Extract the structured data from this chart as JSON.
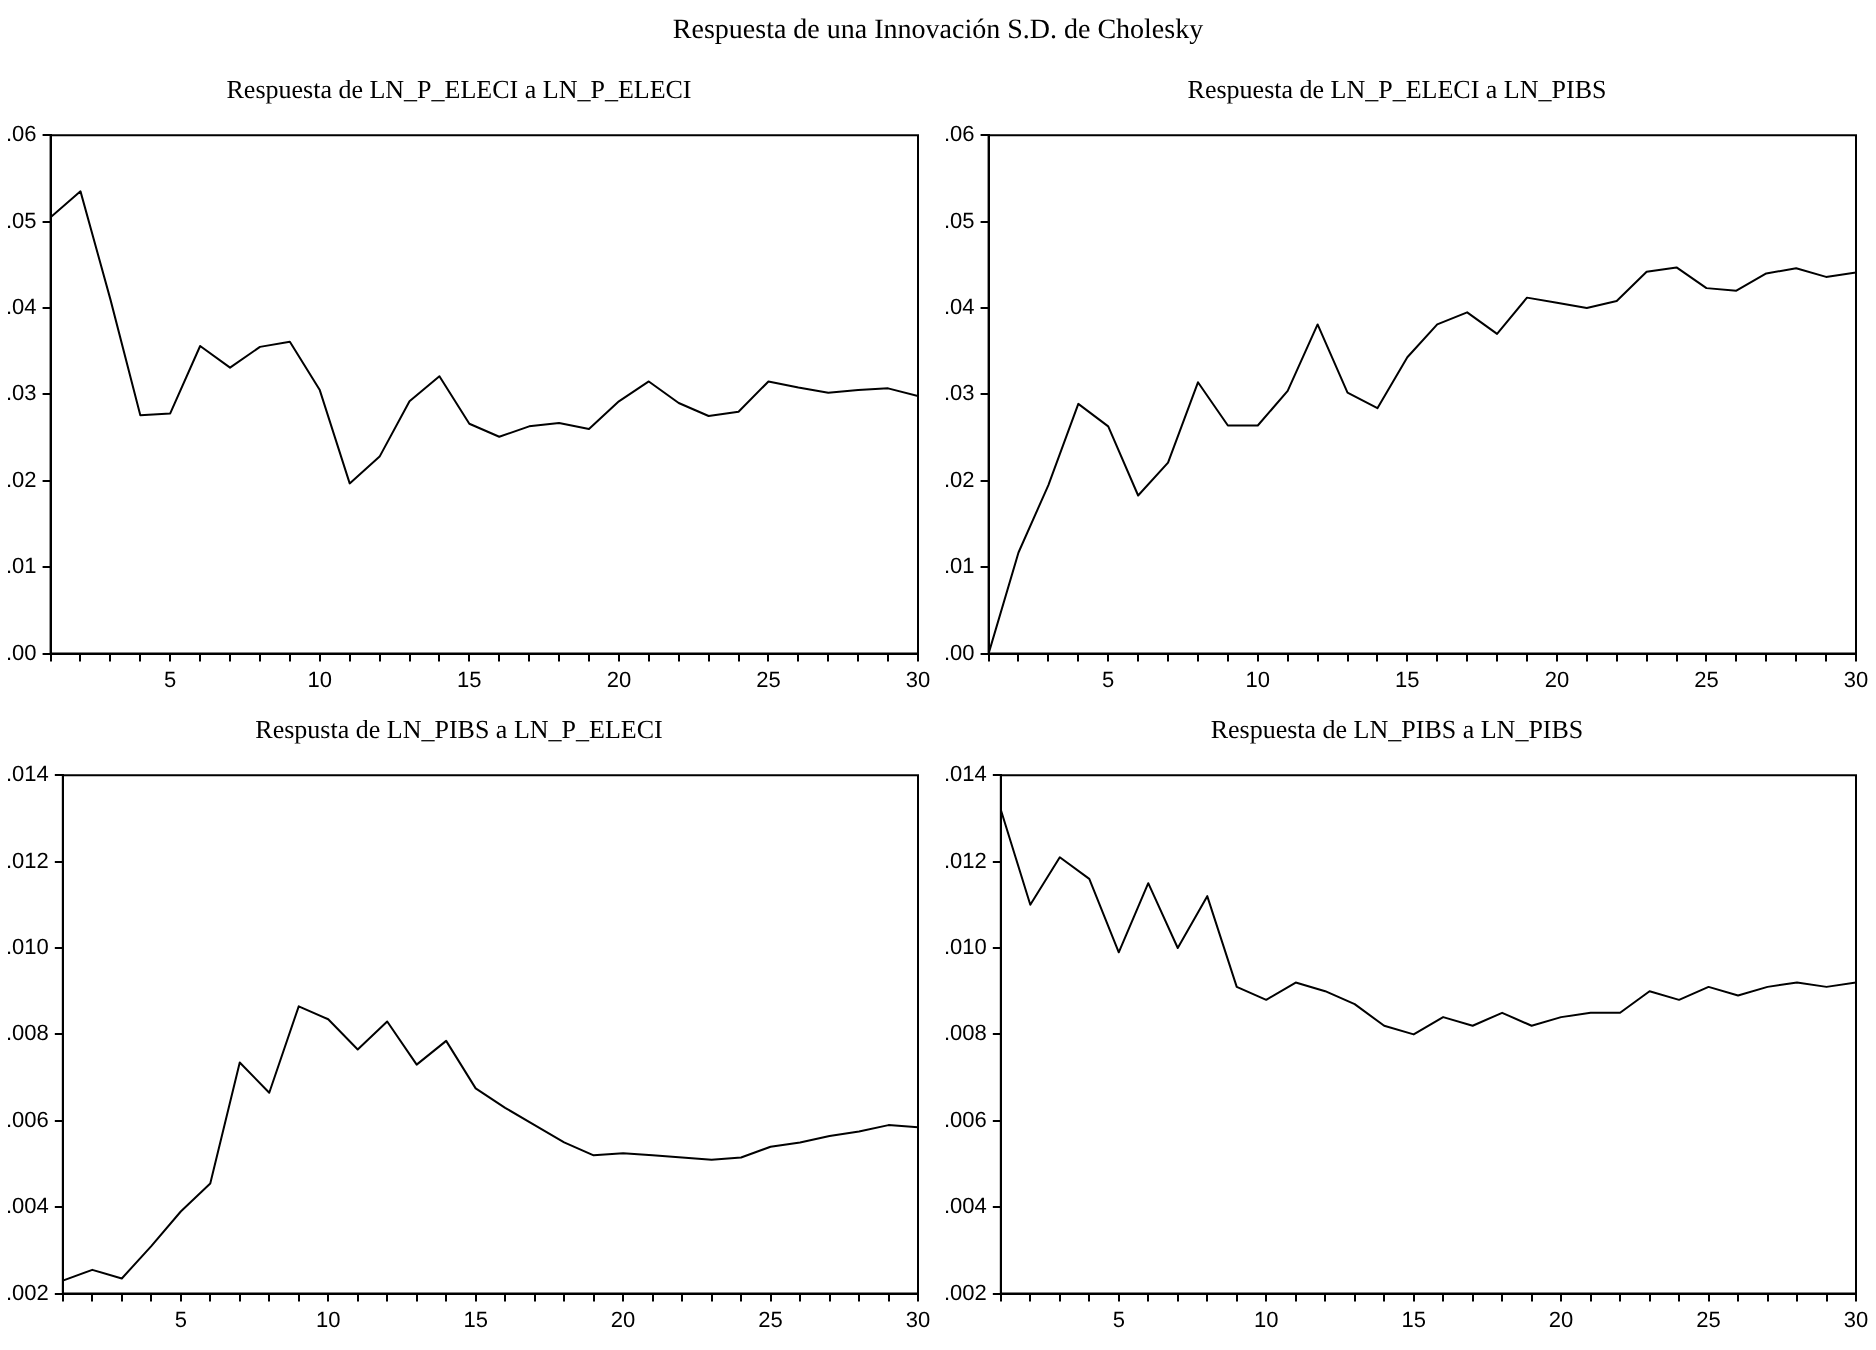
{
  "chart_data": [
    {
      "type": "other",
      "title": "Respuesta de una Innovación S.D. de Cholesky"
    },
    {
      "type": "line",
      "title": "Respuesta de LN_P_ELECI a LN_P_ELECI",
      "x": [
        1,
        2,
        3,
        4,
        5,
        6,
        7,
        8,
        9,
        10,
        11,
        12,
        13,
        14,
        15,
        16,
        17,
        18,
        19,
        20,
        21,
        22,
        23,
        24,
        25,
        26,
        27,
        28,
        29,
        30
      ],
      "series": [
        {
          "color": "#000000",
          "values": [
            0.0505,
            0.0535,
            0.041,
            0.0276,
            0.0278,
            0.0356,
            0.0331,
            0.0355,
            0.0361,
            0.0305,
            0.0197,
            0.0228,
            0.0292,
            0.0321,
            0.0266,
            0.0251,
            0.0263,
            0.0267,
            0.026,
            0.0292,
            0.0315,
            0.029,
            0.0275,
            0.028,
            0.0315,
            0.0308,
            0.0302,
            0.0305,
            0.0307,
            0.0298
          ]
        }
      ],
      "xlim": [
        1,
        30
      ],
      "xticks": [
        {
          "value": 1,
          "label": null
        },
        {
          "value": 2,
          "label": null
        },
        {
          "value": 3,
          "label": null
        },
        {
          "value": 4,
          "label": null
        },
        5,
        {
          "value": 6,
          "label": null
        },
        {
          "value": 7,
          "label": null
        },
        {
          "value": 8,
          "label": null
        },
        {
          "value": 9,
          "label": null
        },
        10,
        {
          "value": 11,
          "label": null
        },
        {
          "value": 12,
          "label": null
        },
        {
          "value": 13,
          "label": null
        },
        {
          "value": 14,
          "label": null
        },
        15,
        {
          "value": 16,
          "label": null
        },
        {
          "value": 17,
          "label": null
        },
        {
          "value": 18,
          "label": null
        },
        {
          "value": 19,
          "label": null
        },
        20,
        {
          "value": 21,
          "label": null
        },
        {
          "value": 22,
          "label": null
        },
        {
          "value": 23,
          "label": null
        },
        {
          "value": 24,
          "label": null
        },
        25,
        {
          "value": 26,
          "label": null
        },
        {
          "value": 27,
          "label": null
        },
        {
          "value": 28,
          "label": null
        },
        {
          "value": 29,
          "label": null
        },
        30
      ],
      "ylim": [
        0,
        0.06
      ],
      "yticks": [
        {
          "value": 0,
          "label": ".00"
        },
        {
          "value": 0.01,
          "label": ".01"
        },
        {
          "value": 0.02,
          "label": ".02"
        },
        {
          "value": 0.03,
          "label": ".03"
        },
        {
          "value": 0.04,
          "label": ".04"
        },
        {
          "value": 0.05,
          "label": ".05"
        },
        {
          "value": 0.06,
          "label": ".06"
        }
      ],
      "grid": false,
      "legend": false
    },
    {
      "type": "line",
      "title": "Respuesta de LN_P_ELECI a LN_PIBS",
      "x": [
        1,
        2,
        3,
        4,
        5,
        6,
        7,
        8,
        9,
        10,
        11,
        12,
        13,
        14,
        15,
        16,
        17,
        18,
        19,
        20,
        21,
        22,
        23,
        24,
        25,
        26,
        27,
        28,
        29,
        30
      ],
      "series": [
        {
          "color": "#000000",
          "values": [
            0.0,
            0.0117,
            0.0195,
            0.0289,
            0.0263,
            0.0183,
            0.0221,
            0.0314,
            0.0264,
            0.0264,
            0.0304,
            0.0381,
            0.0302,
            0.0284,
            0.0343,
            0.0381,
            0.0395,
            0.037,
            0.0412,
            0.0406,
            0.04,
            0.0408,
            0.0442,
            0.0447,
            0.0423,
            0.042,
            0.044,
            0.0446,
            0.0436,
            0.0441
          ]
        }
      ],
      "xlim": [
        1,
        30
      ],
      "xticks": [
        {
          "value": 1,
          "label": null
        },
        {
          "value": 2,
          "label": null
        },
        {
          "value": 3,
          "label": null
        },
        {
          "value": 4,
          "label": null
        },
        5,
        {
          "value": 6,
          "label": null
        },
        {
          "value": 7,
          "label": null
        },
        {
          "value": 8,
          "label": null
        },
        {
          "value": 9,
          "label": null
        },
        10,
        {
          "value": 11,
          "label": null
        },
        {
          "value": 12,
          "label": null
        },
        {
          "value": 13,
          "label": null
        },
        {
          "value": 14,
          "label": null
        },
        15,
        {
          "value": 16,
          "label": null
        },
        {
          "value": 17,
          "label": null
        },
        {
          "value": 18,
          "label": null
        },
        {
          "value": 19,
          "label": null
        },
        20,
        {
          "value": 21,
          "label": null
        },
        {
          "value": 22,
          "label": null
        },
        {
          "value": 23,
          "label": null
        },
        {
          "value": 24,
          "label": null
        },
        25,
        {
          "value": 26,
          "label": null
        },
        {
          "value": 27,
          "label": null
        },
        {
          "value": 28,
          "label": null
        },
        {
          "value": 29,
          "label": null
        },
        30
      ],
      "ylim": [
        0,
        0.06
      ],
      "yticks": [
        {
          "value": 0,
          "label": ".00"
        },
        {
          "value": 0.01,
          "label": ".01"
        },
        {
          "value": 0.02,
          "label": ".02"
        },
        {
          "value": 0.03,
          "label": ".03"
        },
        {
          "value": 0.04,
          "label": ".04"
        },
        {
          "value": 0.05,
          "label": ".05"
        },
        {
          "value": 0.06,
          "label": ".06"
        }
      ],
      "grid": false,
      "legend": false
    },
    {
      "type": "line",
      "title": "Respusta de LN_PIBS a LN_P_ELECI",
      "x": [
        1,
        2,
        3,
        4,
        5,
        6,
        7,
        8,
        9,
        10,
        11,
        12,
        13,
        14,
        15,
        16,
        17,
        18,
        19,
        20,
        21,
        22,
        23,
        24,
        25,
        26,
        27,
        28,
        29,
        30
      ],
      "series": [
        {
          "color": "#000000",
          "values": [
            0.0023,
            0.00255,
            0.00235,
            0.0031,
            0.0039,
            0.00455,
            0.00735,
            0.00665,
            0.00865,
            0.00835,
            0.00765,
            0.0083,
            0.0073,
            0.00785,
            0.00675,
            0.0063,
            0.0059,
            0.0055,
            0.0052,
            0.00525,
            0.0052,
            0.00515,
            0.0051,
            0.00515,
            0.0054,
            0.0055,
            0.00565,
            0.00575,
            0.0059,
            0.00585
          ]
        }
      ],
      "xlim": [
        1,
        30
      ],
      "xticks": [
        {
          "value": 1,
          "label": null
        },
        {
          "value": 2,
          "label": null
        },
        {
          "value": 3,
          "label": null
        },
        {
          "value": 4,
          "label": null
        },
        5,
        {
          "value": 6,
          "label": null
        },
        {
          "value": 7,
          "label": null
        },
        {
          "value": 8,
          "label": null
        },
        {
          "value": 9,
          "label": null
        },
        10,
        {
          "value": 11,
          "label": null
        },
        {
          "value": 12,
          "label": null
        },
        {
          "value": 13,
          "label": null
        },
        {
          "value": 14,
          "label": null
        },
        15,
        {
          "value": 16,
          "label": null
        },
        {
          "value": 17,
          "label": null
        },
        {
          "value": 18,
          "label": null
        },
        {
          "value": 19,
          "label": null
        },
        20,
        {
          "value": 21,
          "label": null
        },
        {
          "value": 22,
          "label": null
        },
        {
          "value": 23,
          "label": null
        },
        {
          "value": 24,
          "label": null
        },
        25,
        {
          "value": 26,
          "label": null
        },
        {
          "value": 27,
          "label": null
        },
        {
          "value": 28,
          "label": null
        },
        {
          "value": 29,
          "label": null
        },
        30
      ],
      "ylim": [
        0.002,
        0.014
      ],
      "yticks": [
        {
          "value": 0.002,
          "label": ".002"
        },
        {
          "value": 0.004,
          "label": ".004"
        },
        {
          "value": 0.006,
          "label": ".006"
        },
        {
          "value": 0.008,
          "label": ".008"
        },
        {
          "value": 0.01,
          "label": ".010"
        },
        {
          "value": 0.012,
          "label": ".012"
        },
        {
          "value": 0.014,
          "label": ".014"
        }
      ],
      "grid": false,
      "legend": false
    },
    {
      "type": "line",
      "title": "Respuesta de LN_PIBS a LN_PIBS",
      "x": [
        1,
        2,
        3,
        4,
        5,
        6,
        7,
        8,
        9,
        10,
        11,
        12,
        13,
        14,
        15,
        16,
        17,
        18,
        19,
        20,
        21,
        22,
        23,
        24,
        25,
        26,
        27,
        28,
        29,
        30
      ],
      "series": [
        {
          "color": "#000000",
          "values": [
            0.0132,
            0.011,
            0.0121,
            0.0116,
            0.0099,
            0.0115,
            0.01,
            0.0112,
            0.0091,
            0.0088,
            0.0092,
            0.009,
            0.0087,
            0.0082,
            0.008,
            0.0084,
            0.0082,
            0.0085,
            0.0082,
            0.0084,
            0.0085,
            0.0085,
            0.009,
            0.0088,
            0.0091,
            0.0089,
            0.0091,
            0.0092,
            0.0091,
            0.0092
          ]
        }
      ],
      "xlim": [
        1,
        30
      ],
      "xticks": [
        {
          "value": 1,
          "label": null
        },
        {
          "value": 2,
          "label": null
        },
        {
          "value": 3,
          "label": null
        },
        {
          "value": 4,
          "label": null
        },
        5,
        {
          "value": 6,
          "label": null
        },
        {
          "value": 7,
          "label": null
        },
        {
          "value": 8,
          "label": null
        },
        {
          "value": 9,
          "label": null
        },
        10,
        {
          "value": 11,
          "label": null
        },
        {
          "value": 12,
          "label": null
        },
        {
          "value": 13,
          "label": null
        },
        {
          "value": 14,
          "label": null
        },
        15,
        {
          "value": 16,
          "label": null
        },
        {
          "value": 17,
          "label": null
        },
        {
          "value": 18,
          "label": null
        },
        {
          "value": 19,
          "label": null
        },
        20,
        {
          "value": 21,
          "label": null
        },
        {
          "value": 22,
          "label": null
        },
        {
          "value": 23,
          "label": null
        },
        {
          "value": 24,
          "label": null
        },
        25,
        {
          "value": 26,
          "label": null
        },
        {
          "value": 27,
          "label": null
        },
        {
          "value": 28,
          "label": null
        },
        {
          "value": 29,
          "label": null
        },
        30
      ],
      "ylim": [
        0.002,
        0.014
      ],
      "yticks": [
        {
          "value": 0.002,
          "label": ".002"
        },
        {
          "value": 0.004,
          "label": ".004"
        },
        {
          "value": 0.006,
          "label": ".006"
        },
        {
          "value": 0.008,
          "label": ".008"
        },
        {
          "value": 0.01,
          "label": ".010"
        },
        {
          "value": 0.012,
          "label": ".012"
        },
        {
          "value": 0.014,
          "label": ".014"
        }
      ],
      "grid": false,
      "legend": false
    }
  ]
}
